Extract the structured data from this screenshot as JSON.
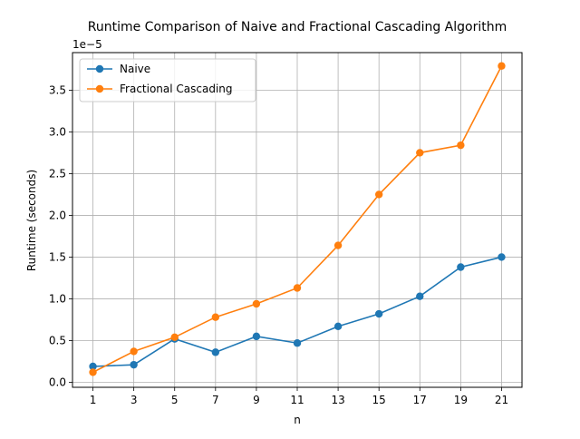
{
  "chart_data": {
    "type": "line",
    "title": "Runtime Comparison of Naive and Fractional Cascading Algorithm",
    "xlabel": "n",
    "ylabel": "Runtime (seconds)",
    "y_offset_label": "1e−5",
    "x": [
      1,
      3,
      5,
      7,
      9,
      11,
      13,
      15,
      17,
      19,
      21
    ],
    "x_ticks": [
      1,
      3,
      5,
      7,
      9,
      11,
      13,
      15,
      17,
      19,
      21
    ],
    "y_ticks": [
      0.0,
      0.5,
      1.0,
      1.5,
      2.0,
      2.5,
      3.0,
      3.5
    ],
    "y_tick_labels": [
      "0.0",
      "0.5",
      "1.0",
      "1.5",
      "2.0",
      "2.5",
      "3.0",
      "3.5"
    ],
    "xlim": [
      0,
      22
    ],
    "ylim": [
      -0.06,
      3.95
    ],
    "grid": true,
    "legend_position": "upper-left",
    "series": [
      {
        "name": "Naive",
        "color": "#1f77b4",
        "values": [
          0.19,
          0.21,
          0.52,
          0.36,
          0.55,
          0.47,
          0.67,
          0.82,
          1.03,
          1.38,
          1.5
        ]
      },
      {
        "name": "Fractional Cascading",
        "color": "#ff7f0e",
        "values": [
          0.12,
          0.37,
          0.54,
          0.78,
          0.94,
          1.13,
          1.64,
          2.25,
          2.75,
          2.84,
          3.79
        ]
      }
    ]
  }
}
